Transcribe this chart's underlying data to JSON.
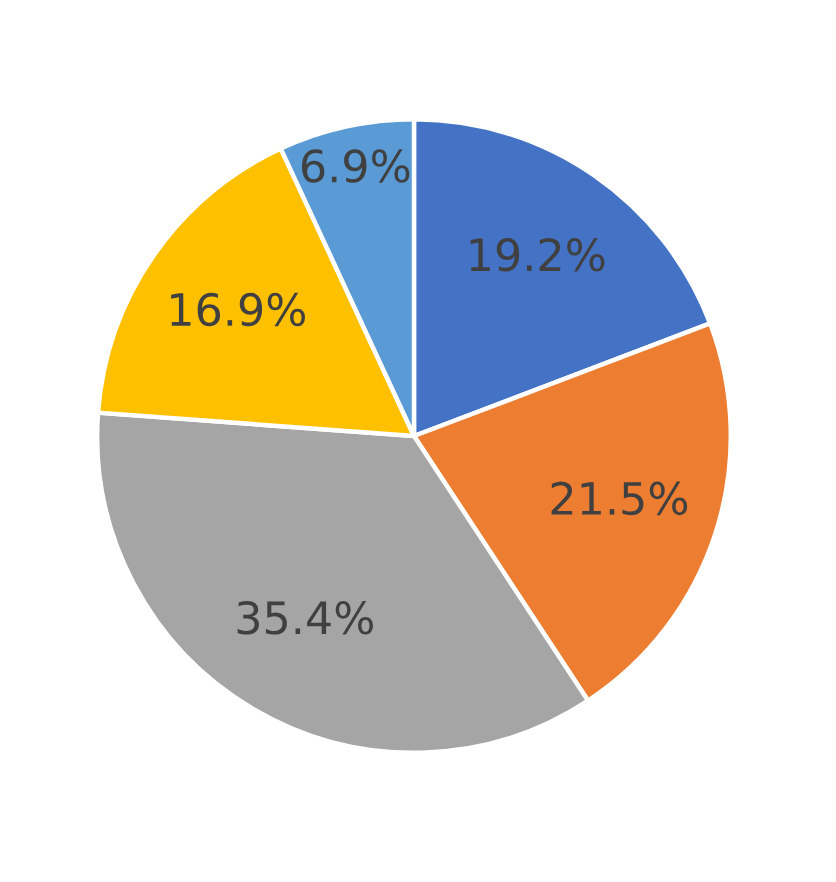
{
  "chart_data": {
    "type": "pie",
    "categories": [
      null,
      null,
      null,
      null,
      null
    ],
    "values": [
      19.2,
      21.5,
      35.4,
      16.9,
      6.9
    ],
    "colors": [
      "#4472c4",
      "#ed7d31",
      "#a5a5a5",
      "#ffc000",
      "#5b9bd5"
    ],
    "value_labels": [
      "19.2%",
      "21.5%",
      "35.4%",
      "16.9%",
      "6.9%"
    ]
  }
}
